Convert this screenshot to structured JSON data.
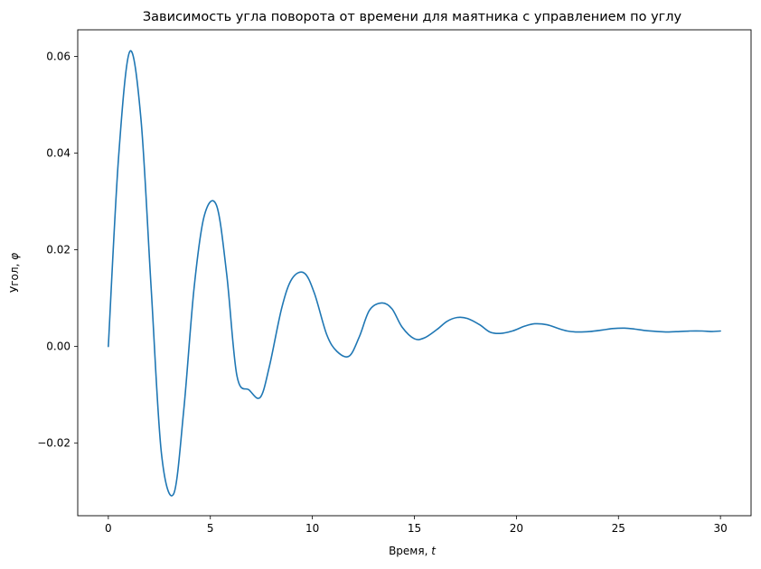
{
  "chart_data": {
    "type": "line",
    "title": "Зависимость угла поворота от времени для маятника с управлением по углу",
    "xlabel_text": "Время, ",
    "xlabel_var": "t",
    "ylabel_text": "Угол, ",
    "ylabel_var": "φ",
    "xlim": [
      -1.5,
      31.5
    ],
    "ylim": [
      -0.035,
      0.0655
    ],
    "xticks": [
      0,
      5,
      10,
      15,
      20,
      25,
      30
    ],
    "xtick_labels": [
      "0",
      "5",
      "10",
      "15",
      "20",
      "25",
      "30"
    ],
    "yticks": [
      -0.02,
      0.0,
      0.02,
      0.04,
      0.06
    ],
    "ytick_labels": [
      "−0.02",
      "0.00",
      "0.02",
      "0.04",
      "0.06"
    ],
    "grid": false,
    "series": [
      {
        "color": "#1f77b4",
        "x": [
          0.0,
          0.5,
          1.05,
          1.6,
          2.1,
          2.6,
          3.2,
          3.7,
          4.2,
          4.7,
          5.3,
          5.8,
          6.3,
          6.9,
          7.45,
          7.9,
          8.5,
          9.0,
          9.6,
          10.1,
          10.7,
          11.2,
          11.8,
          12.3,
          12.8,
          13.4,
          13.9,
          14.4,
          15.0,
          15.5,
          16.1,
          16.6,
          17.1,
          17.6,
          18.2,
          18.7,
          19.2,
          19.8,
          20.4,
          20.9,
          21.5,
          22.0,
          22.5,
          23.0,
          23.6,
          24.2,
          24.7,
          25.3,
          25.8,
          26.3,
          26.9,
          27.4,
          28.0,
          28.5,
          29.1,
          29.6,
          30.0
        ],
        "y": [
          0.0,
          0.039,
          0.061,
          0.047,
          0.012,
          -0.022,
          -0.0305,
          -0.013,
          0.012,
          0.027,
          0.0292,
          0.015,
          -0.006,
          -0.009,
          -0.0105,
          -0.004,
          0.008,
          0.014,
          0.0152,
          0.011,
          0.0025,
          -0.001,
          -0.002,
          0.002,
          0.0075,
          0.009,
          0.0078,
          0.004,
          0.0016,
          0.0018,
          0.0035,
          0.0052,
          0.006,
          0.0058,
          0.0045,
          0.003,
          0.0027,
          0.0032,
          0.0042,
          0.0047,
          0.0045,
          0.0038,
          0.0032,
          0.003,
          0.0031,
          0.0034,
          0.0037,
          0.0038,
          0.0036,
          0.0033,
          0.0031,
          0.003,
          0.0031,
          0.0032,
          0.0032,
          0.0031,
          0.0032
        ]
      }
    ]
  }
}
